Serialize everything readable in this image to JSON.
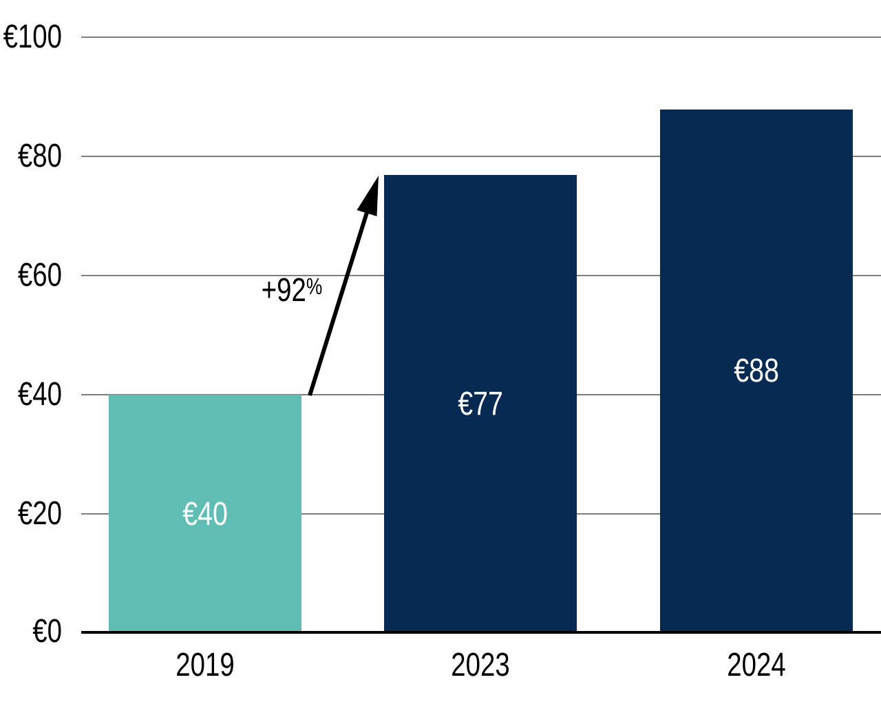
{
  "chart_data": {
    "type": "bar",
    "categories": [
      "2019",
      "2023",
      "2024"
    ],
    "bars": [
      {
        "year": "2019",
        "value": 40,
        "value_label": "€40",
        "color": "#5FBDB3"
      },
      {
        "year": "2023",
        "value": 77,
        "value_label": "€77",
        "color": "#062A52"
      },
      {
        "year": "2024",
        "value": 88,
        "value_label": "€88",
        "color": "#062A52"
      }
    ],
    "yticks": [
      {
        "value": 0,
        "label": "€0"
      },
      {
        "value": 20,
        "label": "€20"
      },
      {
        "value": 40,
        "label": "€40"
      },
      {
        "value": 60,
        "label": "€60"
      },
      {
        "value": 80,
        "label": "€80"
      },
      {
        "value": 100,
        "label": "€100"
      }
    ],
    "ylim": [
      0,
      100
    ],
    "grid": true,
    "legend": "none",
    "annotation": {
      "text": "+92%",
      "text_main": "+92",
      "text_suffix": "%"
    },
    "colors": {
      "teal_bar": "#5FBDB3",
      "navy_bar": "#062A52",
      "gridline": "#7D7D7D",
      "axis": "#000000",
      "bar_value_text": "#FFFFFF",
      "annotation_text": "#000000"
    }
  }
}
